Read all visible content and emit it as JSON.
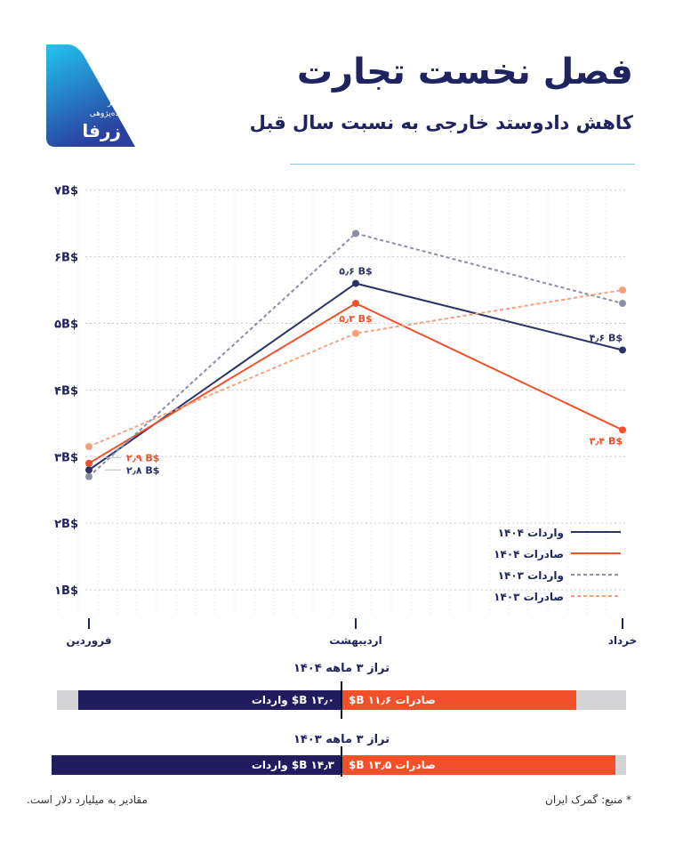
{
  "logo": {
    "line1": "مرکز",
    "line2": "داده‌پژوهی",
    "brand": "زرفا"
  },
  "header": {
    "title": "فصل نخست تجارت",
    "subtitle": "کاهش دادوستد خارجی به نسبت سال قبل"
  },
  "chart_data": {
    "type": "line",
    "categories": [
      "فروردین",
      "اردیبهشت",
      "خرداد"
    ],
    "y_ticks": [
      "۱B$",
      "۲B$",
      "۳B$",
      "۴B$",
      "۵B$",
      "۶B$",
      "۷B$"
    ],
    "ylim": [
      0.6,
      7.05
    ],
    "series": [
      {
        "key": "imp1404",
        "name": "واردات ۱۴۰۴",
        "values": [
          2.8,
          5.6,
          4.6
        ],
        "color": "#2b3366",
        "dashed": false,
        "labels": [
          "۲٫۸ B$",
          "۵٫۶ B$",
          "۴٫۶ B$"
        ]
      },
      {
        "key": "exp1404",
        "name": "صادرات ۱۴۰۴",
        "values": [
          2.9,
          5.3,
          3.4
        ],
        "color": "#f2502a",
        "dashed": false,
        "labels": [
          "۲٫۹ B$",
          "۵٫۳ B$",
          "۳٫۴ B$"
        ]
      },
      {
        "key": "imp1403",
        "name": "واردات ۱۴۰۳",
        "values": [
          2.7,
          6.35,
          5.3
        ],
        "color": "#8a8fa8",
        "dashed": true
      },
      {
        "key": "exp1403",
        "name": "صادرات ۱۴۰۳",
        "values": [
          3.15,
          4.85,
          5.5
        ],
        "color": "#f7a07c",
        "dashed": true
      }
    ]
  },
  "balance": [
    {
      "title": "تراز ۳ ماهه ۱۴۰۴",
      "imports": 13.0,
      "exports": 11.6,
      "imports_label": "۱۳٫۰ B$ واردات",
      "exports_label": "صادرات ۱۱٫۶ B$"
    },
    {
      "title": "تراز ۳ ماهه ۱۴۰۳",
      "imports": 14.3,
      "exports": 13.5,
      "imports_label": "۱۴٫۳ B$ واردات",
      "exports_label": "صادرات ۱۳٫۵ B$"
    }
  ],
  "footer": {
    "source": "* منبع: گمرک ایران",
    "note": "مقادیر به میلیارد دلار است."
  },
  "colors": {
    "navy": "#211c5e",
    "orange": "#f2502a",
    "grid": "#c9c9cf",
    "logo_gradient_top": "#22c4ef",
    "logo_gradient_bottom": "#2a3f9e"
  }
}
